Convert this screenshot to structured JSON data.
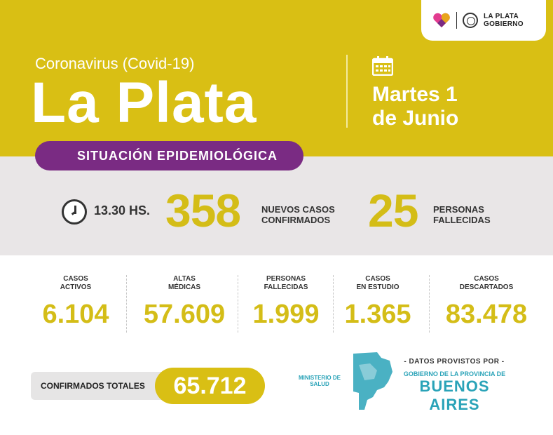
{
  "header": {
    "subtitle": "Coronavirus (Covid-19)",
    "title": "La Plata",
    "date_line1": "Martes 1",
    "date_line2": "de Junio",
    "logo_line1": "LA PLATA",
    "logo_line2": "GOBIERNO"
  },
  "situation_label": "SITUACIÓN EPIDEMIOLÓGICA",
  "daily": {
    "time": "13.30 HS.",
    "new_cases": "358",
    "new_cases_label_1": "NUEVOS CASOS",
    "new_cases_label_2": "CONFIRMADOS",
    "deaths": "25",
    "deaths_label_1": "PERSONAS",
    "deaths_label_2": "FALLECIDAS"
  },
  "stats": [
    {
      "label_1": "CASOS",
      "label_2": "ACTIVOS",
      "value": "6.104"
    },
    {
      "label_1": "ALTAS",
      "label_2": "MÉDICAS",
      "value": "57.609"
    },
    {
      "label_1": "PERSONAS",
      "label_2": "FALLECIDAS",
      "value": "1.999"
    },
    {
      "label_1": "CASOS",
      "label_2": "EN ESTUDIO",
      "value": "1.365"
    },
    {
      "label_1": "CASOS",
      "label_2": "DESCARTADOS",
      "value": "83.478"
    }
  ],
  "total": {
    "label": "CONFIRMADOS TOTALES",
    "value": "65.712"
  },
  "footer": {
    "ministerio_1": "MINISTERIO DE",
    "ministerio_2": "SALUD",
    "datos": "- DATOS PROVISTOS POR -",
    "gobierno": "GOBIERNO DE LA PROVINCIA DE",
    "buenos_aires": "BUENOS AIRES"
  },
  "colors": {
    "yellow": "#d9bf14",
    "purple": "#7a2b83",
    "gray_band": "#e9e6e7",
    "teal": "#2aa3b8"
  },
  "icons": [
    "heart-logo-icon",
    "seal-icon",
    "calendar-icon",
    "clock-icon",
    "province-map-icon"
  ]
}
